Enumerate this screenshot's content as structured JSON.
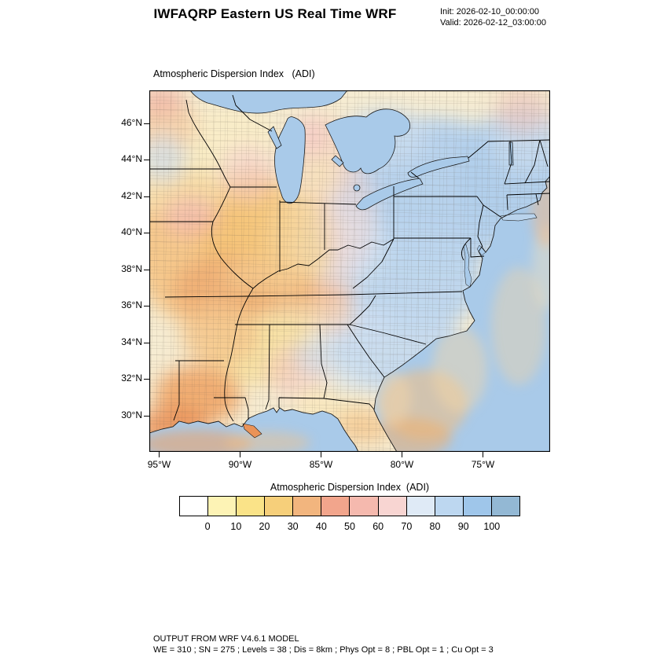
{
  "header": {
    "title": "IWFAQRP Eastern US Real Time WRF",
    "init_label": "Init: 2026-02-10_00:00:00",
    "valid_label": "Valid: 2026-02-12_03:00:00"
  },
  "plot": {
    "field_title": "Atmospheric Dispersion Index   (ADI)"
  },
  "axes": {
    "lat_ticks": [
      "46°N",
      "44°N",
      "42°N",
      "40°N",
      "38°N",
      "36°N",
      "34°N",
      "32°N",
      "30°N"
    ],
    "lon_ticks": [
      "95°W",
      "90°W",
      "85°W",
      "80°W",
      "75°W"
    ]
  },
  "colorbar": {
    "title": "Atmospheric Dispersion Index  (ADI)",
    "tick_labels": [
      "0",
      "10",
      "20",
      "30",
      "40",
      "50",
      "60",
      "70",
      "80",
      "90",
      "100"
    ],
    "colors": [
      "#ffffff",
      "#fdf3b5",
      "#fae388",
      "#f6cf7a",
      "#f2b57e",
      "#f2a58c",
      "#f5b9ae",
      "#f8d5d2",
      "#dfeaf6",
      "#bdd7f0",
      "#9fc6ea",
      "#93b8d4"
    ]
  },
  "footer": {
    "line1": "OUTPUT FROM WRF V4.6.1 MODEL",
    "line2": "WE = 310 ; SN = 275 ; Levels = 38 ; Dis = 8km ; Phys Opt = 8 ; PBL Opt = 1 ; Cu Opt = 3"
  },
  "chart_data": {
    "type": "heatmap",
    "title": "Atmospheric Dispersion Index (ADI)",
    "region": "Eastern United States, county-level WRF model output",
    "x_ticks": [
      "95°W",
      "90°W",
      "85°W",
      "80°W",
      "75°W"
    ],
    "y_ticks": [
      "46°N",
      "44°N",
      "42°N",
      "40°N",
      "38°N",
      "36°N",
      "34°N",
      "32°N",
      "30°N"
    ],
    "scale_levels": [
      0,
      10,
      20,
      30,
      40,
      50,
      60,
      70,
      80,
      90,
      100
    ],
    "scale_colors": [
      "#ffffff",
      "#fdf3b5",
      "#fae388",
      "#f6cf7a",
      "#f2b57e",
      "#f2a58c",
      "#f5b9ae",
      "#f8d5d2",
      "#dfeaf6",
      "#bdd7f0",
      "#9fc6ea",
      "#93b8d4"
    ],
    "pattern_summary": "Low ADI (0-40, white/yellow/orange) across the upper Midwest, Mississippi valley and Gulf states; pink 40-60 bands along the Kentucky-Tennessee border, Louisiana coast and western counties; high ADI (60-100+, blues) over Ohio, the Northeast, Appalachians, Carolinas and adjacent Atlantic waters"
  }
}
